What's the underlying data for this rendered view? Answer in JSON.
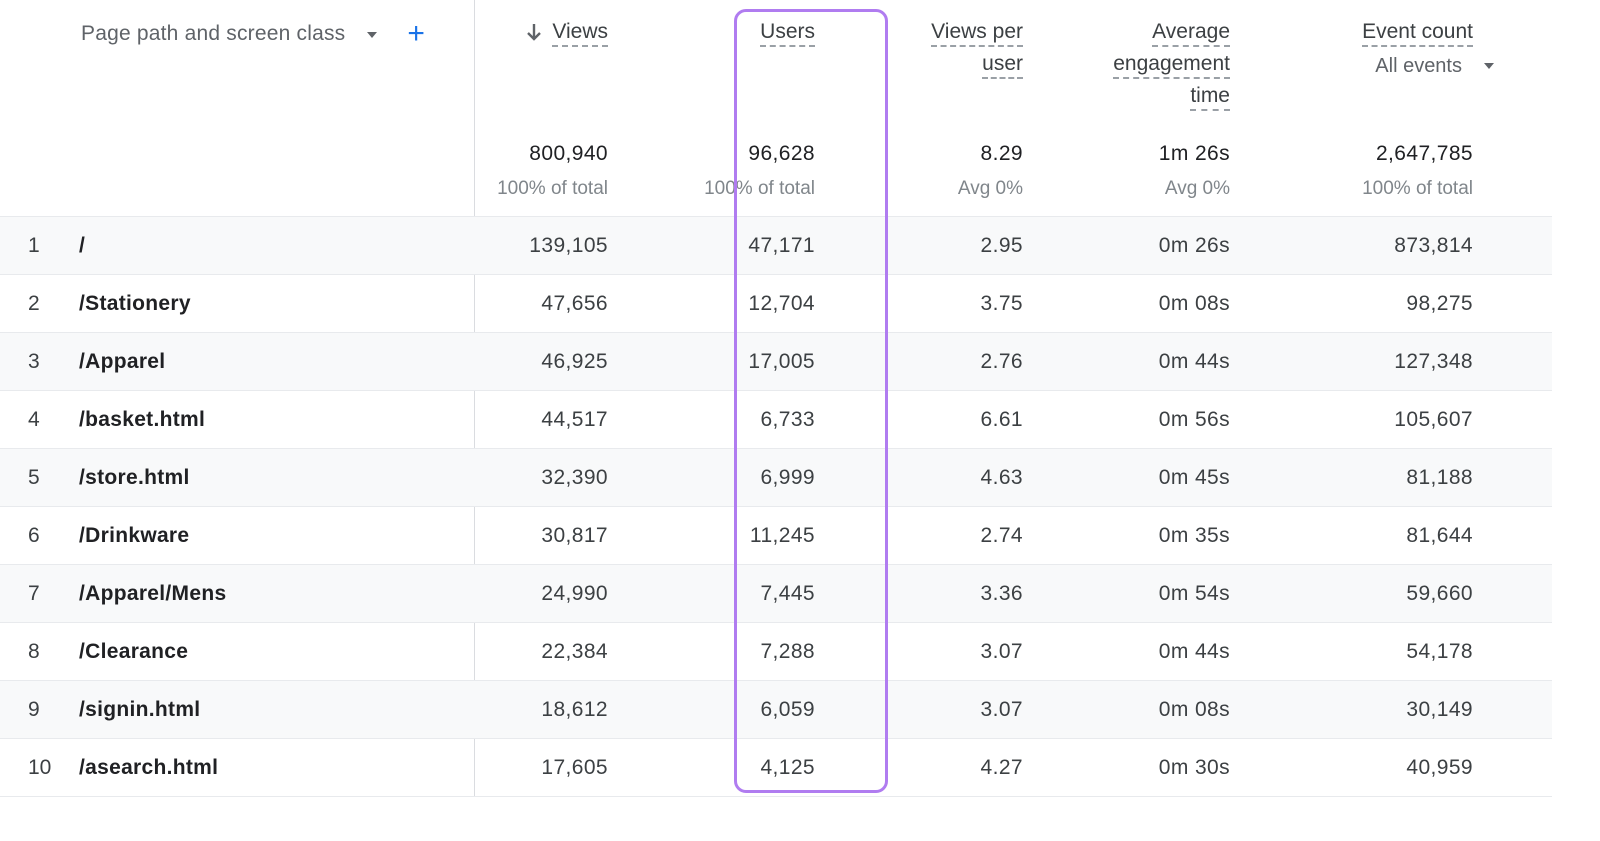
{
  "dimension": {
    "label": "Page path and screen class",
    "add_label": "+"
  },
  "columns": {
    "views": {
      "label": "Views",
      "total": "800,940",
      "sub": "100% of total"
    },
    "users": {
      "label": "Users",
      "total": "96,628",
      "sub": "100% of total"
    },
    "views_per_user": {
      "label_1": "Views per",
      "label_2": "user",
      "total": "8.29",
      "sub": "Avg 0%"
    },
    "avg_engagement": {
      "label_1": "Average",
      "label_2": "engagement",
      "label_3": "time",
      "total": "1m 26s",
      "sub": "Avg 0%"
    },
    "event_count": {
      "label": "Event count",
      "filter": "All events",
      "total": "2,647,785",
      "sub": "100% of total"
    }
  },
  "icons": {
    "sort": "arrow-down-icon",
    "dropdown": "caret-down-icon",
    "add": "plus-icon"
  },
  "colors": {
    "highlight": "#b07cf0",
    "accent": "#1a73e8"
  },
  "rows": [
    {
      "idx": "1",
      "path": "/",
      "views": "139,105",
      "users": "47,171",
      "vpu": "2.95",
      "eng": "0m 26s",
      "events": "873,814"
    },
    {
      "idx": "2",
      "path": "/Stationery",
      "views": "47,656",
      "users": "12,704",
      "vpu": "3.75",
      "eng": "0m 08s",
      "events": "98,275"
    },
    {
      "idx": "3",
      "path": "/Apparel",
      "views": "46,925",
      "users": "17,005",
      "vpu": "2.76",
      "eng": "0m 44s",
      "events": "127,348"
    },
    {
      "idx": "4",
      "path": "/basket.html",
      "views": "44,517",
      "users": "6,733",
      "vpu": "6.61",
      "eng": "0m 56s",
      "events": "105,607"
    },
    {
      "idx": "5",
      "path": "/store.html",
      "views": "32,390",
      "users": "6,999",
      "vpu": "4.63",
      "eng": "0m 45s",
      "events": "81,188"
    },
    {
      "idx": "6",
      "path": "/Drinkware",
      "views": "30,817",
      "users": "11,245",
      "vpu": "2.74",
      "eng": "0m 35s",
      "events": "81,644"
    },
    {
      "idx": "7",
      "path": "/Apparel/Mens",
      "views": "24,990",
      "users": "7,445",
      "vpu": "3.36",
      "eng": "0m 54s",
      "events": "59,660"
    },
    {
      "idx": "8",
      "path": "/Clearance",
      "views": "22,384",
      "users": "7,288",
      "vpu": "3.07",
      "eng": "0m 44s",
      "events": "54,178"
    },
    {
      "idx": "9",
      "path": "/signin.html",
      "views": "18,612",
      "users": "6,059",
      "vpu": "3.07",
      "eng": "0m 08s",
      "events": "30,149"
    },
    {
      "idx": "10",
      "path": "/asearch.html",
      "views": "17,605",
      "users": "4,125",
      "vpu": "4.27",
      "eng": "0m 30s",
      "events": "40,959"
    }
  ]
}
